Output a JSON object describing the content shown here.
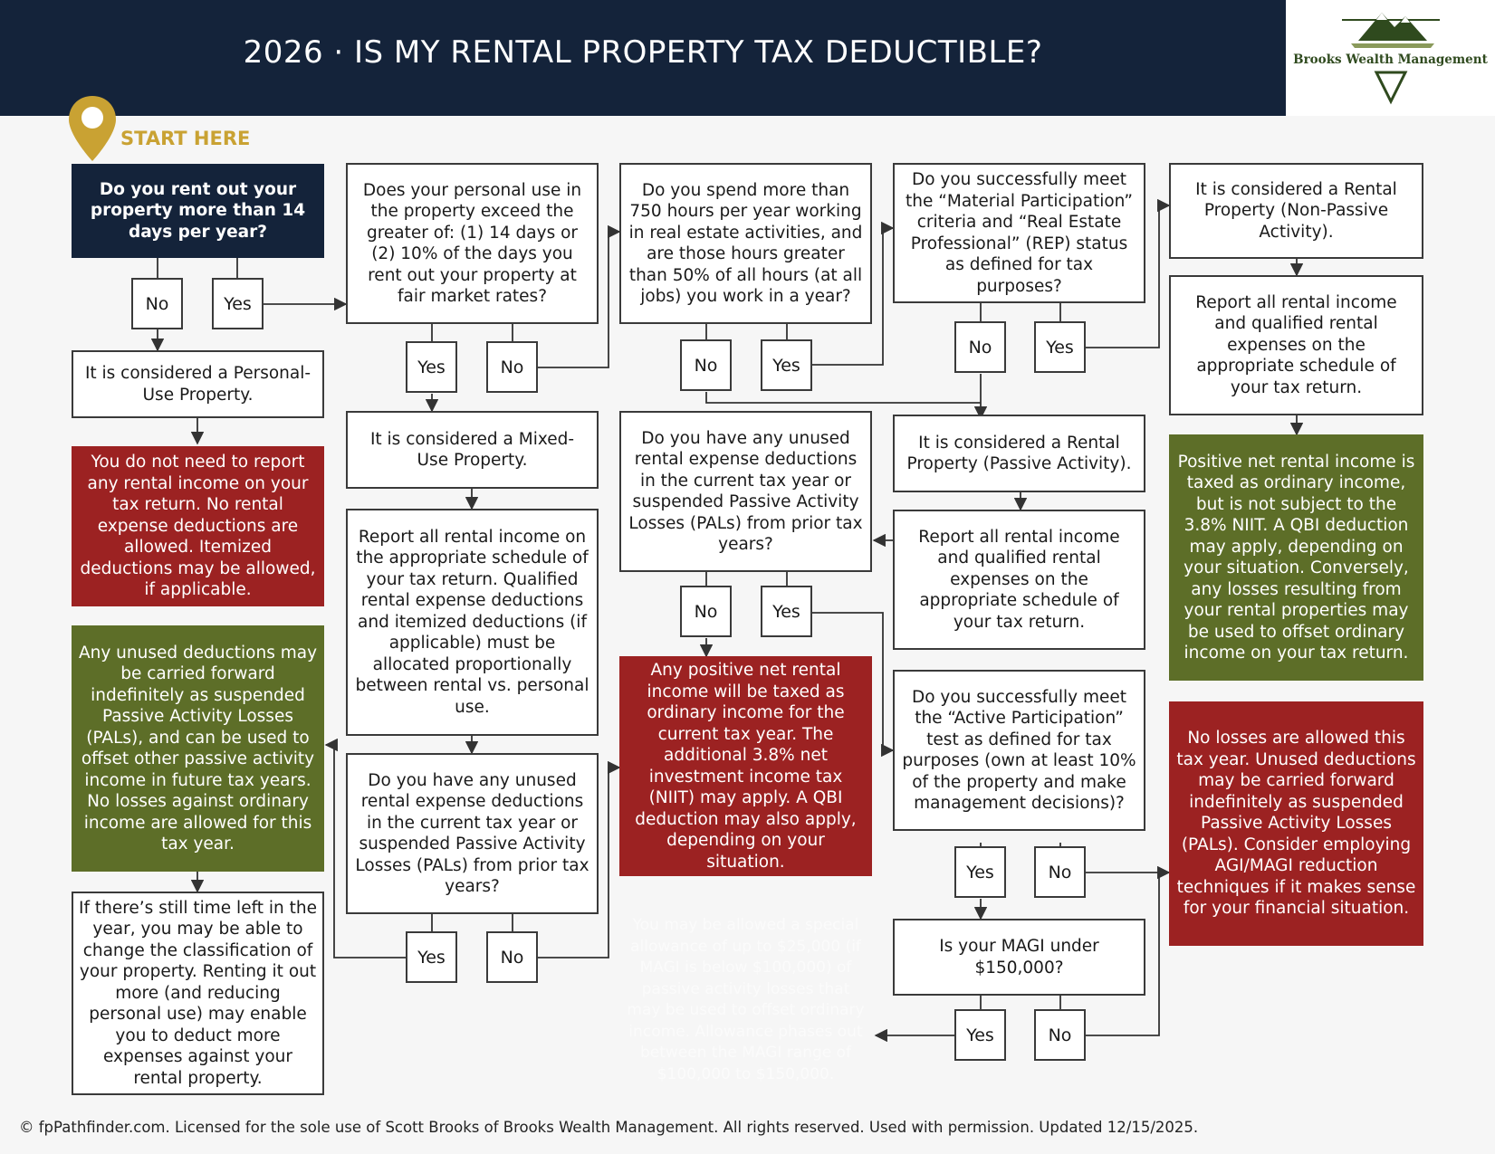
{
  "header": {
    "title": "2026 · IS MY RENTAL PROPERTY TAX DEDUCTIBLE?",
    "logo_text": "Brooks Wealth Management"
  },
  "colors": {
    "navy": "#14233a",
    "gold": "#c9a233",
    "red": "#9c2222",
    "green": "#5d6e28",
    "logo_green": "#2f4a1e"
  },
  "start_label": "START HERE",
  "boxes": {
    "q_rent_14_days": "Do you rent out your property more than 14 days per year?",
    "r_personal_use": "It is considered a Personal-Use Property.",
    "r_no_report": "You do not need to report any rental income on your tax return. No rental expense deductions are allowed. Itemized deductions may be allowed, if applicable.",
    "r_unused_deductions_carried": "Any unused deductions may be carried forward indefinitely as suspended Passive Activity Losses (PALs), and can be used to offset other passive activity income in future tax years. No losses against ordinary income are allowed for this tax year.",
    "r_time_left": "If there’s still time left in the year, you may be able to change the classification of your property. Renting it out more (and reducing personal use) may enable you to deduct more expenses against your rental property.",
    "q_personal_use_exceed": "Does your personal use in the property exceed the greater of: (1) 14 days or (2) 10% of the days you rent out your property at fair market rates?",
    "r_mixed_use": "It is considered a Mixed-Use Property.",
    "r_report_allocate": "Report all rental income on the appropriate schedule of your tax return. Qualified rental expense deductions and itemized deductions (if applicable) must be allocated proportionally between rental vs. personal use.",
    "q_unused_mixed": "Do you have any unused rental expense deductions in the current tax year or suspended Passive Activity Losses (PALs) from prior tax years?",
    "q_750_hours": "Do you spend more than 750 hours per year working in real estate activities, and are those hours greater than 50% of all hours (at all jobs) you work in a year?",
    "q_unused_passive": "Do you have any unused rental expense deductions in the current tax year or suspended Passive Activity Losses (PALs) from prior tax years?",
    "r_positive_taxed": "Any positive net rental income will be taxed as ordinary income for the current tax year. The additional 3.8% net investment income tax (NIIT) may apply. A QBI deduction may also apply, depending on your situation.",
    "r_special_allowance": "You may be allowed a special allowance of up to $25,000 (if MAGI is below $100,000) of passive activity losses that may be used to offset ordinary income. Allowance phases out between the MAGI range of $100,000 to $150,000.",
    "q_material_participation": "Do you successfully meet the “Material Participation” criteria and “Real Estate Professional” (REP) status as defined for tax purposes?",
    "r_rental_passive": "It is considered a Rental Property (Passive Activity).",
    "r_report_passive": "Report all rental income and qualified rental expenses on the appropriate schedule of your tax return.",
    "q_active_participation": "Do you successfully meet the “Active Participation” test as defined for tax purposes (own at least 10% of the property and make management decisions)?",
    "q_magi": "Is your MAGI under $150,000?",
    "r_rental_nonpassive": "It is considered a Rental Property (Non-Passive Activity).",
    "r_report_nonpassive": "Report all rental income and qualified rental expenses on the appropriate schedule of your tax return.",
    "r_positive_nonpassive": "Positive net rental income is taxed as ordinary income, but is not subject to the 3.8% NIIT. A QBI deduction may apply, depending on your situation. Conversely, any losses resulting from your rental properties may be used to offset ordinary income on your tax return.",
    "r_no_losses": "No losses are allowed this tax year. Unused deductions may be carried forward indefinitely as suspended Passive Activity Losses (PALs). Consider employing AGI/MAGI reduction techniques if it makes sense for your financial situation."
  },
  "answers": {
    "yes": "Yes",
    "no": "No"
  },
  "footer": "© fpPathfinder.com. Licensed for the sole use of Scott Brooks of Brooks Wealth Management. All rights reserved. Used with permission. Updated 12/15/2025."
}
